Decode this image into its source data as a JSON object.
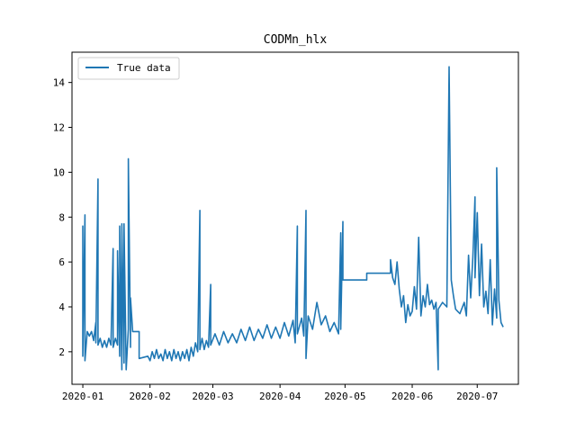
{
  "chart_data": {
    "type": "line",
    "title": "CODMn_hlx",
    "xlabel": "",
    "ylabel": "",
    "x_ticks": [
      "2020-01",
      "2020-02",
      "2020-03",
      "2020-04",
      "2020-05",
      "2020-06",
      "2020-07"
    ],
    "y_ticks": [
      2,
      4,
      6,
      8,
      10,
      12,
      14
    ],
    "xlim": [
      "2019-12-27",
      "2020-07-20"
    ],
    "ylim": [
      0.55,
      15.35
    ],
    "grid": false,
    "legend_position": "top-left",
    "line_color": "#1f77b4",
    "series": [
      {
        "name": "True data",
        "points": [
          [
            "2020-01-01",
            2.0
          ],
          [
            "2020-01-01",
            7.6
          ],
          [
            "2020-01-01",
            1.8
          ],
          [
            "2020-01-02",
            8.1
          ],
          [
            "2020-01-02",
            1.6
          ],
          [
            "2020-01-03",
            2.9
          ],
          [
            "2020-01-04",
            2.7
          ],
          [
            "2020-01-05",
            2.9
          ],
          [
            "2020-01-06",
            2.5
          ],
          [
            "2020-01-07",
            3.3
          ],
          [
            "2020-01-07",
            2.4
          ],
          [
            "2020-01-08",
            9.7
          ],
          [
            "2020-01-08",
            2.3
          ],
          [
            "2020-01-09",
            2.6
          ],
          [
            "2020-01-10",
            2.2
          ],
          [
            "2020-01-11",
            2.5
          ],
          [
            "2020-01-12",
            2.2
          ],
          [
            "2020-01-13",
            2.6
          ],
          [
            "2020-01-14",
            2.3
          ],
          [
            "2020-01-15",
            6.6
          ],
          [
            "2020-01-15",
            2.2
          ],
          [
            "2020-01-16",
            2.6
          ],
          [
            "2020-01-17",
            2.3
          ],
          [
            "2020-01-17",
            6.5
          ],
          [
            "2020-01-18",
            1.8
          ],
          [
            "2020-01-18",
            7.6
          ],
          [
            "2020-01-19",
            1.2
          ],
          [
            "2020-01-19",
            7.7
          ],
          [
            "2020-01-20",
            1.5
          ],
          [
            "2020-01-20",
            7.7
          ],
          [
            "2020-01-21",
            1.2
          ],
          [
            "2020-01-22",
            3.0
          ],
          [
            "2020-01-22",
            10.6
          ],
          [
            "2020-01-23",
            2.2
          ],
          [
            "2020-01-23",
            4.4
          ],
          [
            "2020-01-24",
            2.9
          ],
          [
            "2020-01-27",
            2.9
          ],
          [
            "2020-01-27",
            1.7
          ],
          [
            "2020-01-31",
            1.8
          ],
          [
            "2020-02-01",
            1.6
          ],
          [
            "2020-02-02",
            2.0
          ],
          [
            "2020-02-03",
            1.7
          ],
          [
            "2020-02-04",
            2.1
          ],
          [
            "2020-02-05",
            1.7
          ],
          [
            "2020-02-06",
            1.9
          ],
          [
            "2020-02-07",
            1.6
          ],
          [
            "2020-02-08",
            2.1
          ],
          [
            "2020-02-09",
            1.7
          ],
          [
            "2020-02-10",
            2.0
          ],
          [
            "2020-02-11",
            1.6
          ],
          [
            "2020-02-12",
            2.1
          ],
          [
            "2020-02-13",
            1.7
          ],
          [
            "2020-02-14",
            2.0
          ],
          [
            "2020-02-15",
            1.6
          ],
          [
            "2020-02-16",
            2.0
          ],
          [
            "2020-02-17",
            1.7
          ],
          [
            "2020-02-18",
            2.1
          ],
          [
            "2020-02-19",
            1.6
          ],
          [
            "2020-02-20",
            2.2
          ],
          [
            "2020-02-21",
            1.8
          ],
          [
            "2020-02-22",
            2.4
          ],
          [
            "2020-02-23",
            2.0
          ],
          [
            "2020-02-24",
            8.3
          ],
          [
            "2020-02-24",
            2.1
          ],
          [
            "2020-02-25",
            2.6
          ],
          [
            "2020-02-26",
            2.1
          ],
          [
            "2020-02-27",
            2.5
          ],
          [
            "2020-02-28",
            2.2
          ],
          [
            "2020-02-29",
            5.0
          ],
          [
            "2020-02-29",
            2.3
          ],
          [
            "2020-03-02",
            2.8
          ],
          [
            "2020-03-04",
            2.3
          ],
          [
            "2020-03-06",
            2.9
          ],
          [
            "2020-03-08",
            2.4
          ],
          [
            "2020-03-10",
            2.8
          ],
          [
            "2020-03-12",
            2.4
          ],
          [
            "2020-03-14",
            3.0
          ],
          [
            "2020-03-16",
            2.5
          ],
          [
            "2020-03-18",
            3.1
          ],
          [
            "2020-03-20",
            2.5
          ],
          [
            "2020-03-22",
            3.0
          ],
          [
            "2020-03-24",
            2.6
          ],
          [
            "2020-03-26",
            3.2
          ],
          [
            "2020-03-28",
            2.6
          ],
          [
            "2020-03-30",
            3.1
          ],
          [
            "2020-04-01",
            2.6
          ],
          [
            "2020-04-03",
            3.3
          ],
          [
            "2020-04-05",
            2.7
          ],
          [
            "2020-04-07",
            3.4
          ],
          [
            "2020-04-08",
            2.4
          ],
          [
            "2020-04-09",
            7.6
          ],
          [
            "2020-04-09",
            2.8
          ],
          [
            "2020-04-11",
            3.5
          ],
          [
            "2020-04-12",
            2.7
          ],
          [
            "2020-04-13",
            8.3
          ],
          [
            "2020-04-13",
            1.7
          ],
          [
            "2020-04-14",
            3.6
          ],
          [
            "2020-04-16",
            3.0
          ],
          [
            "2020-04-18",
            4.2
          ],
          [
            "2020-04-20",
            3.2
          ],
          [
            "2020-04-22",
            3.6
          ],
          [
            "2020-04-24",
            2.9
          ],
          [
            "2020-04-26",
            3.3
          ],
          [
            "2020-04-28",
            2.8
          ],
          [
            "2020-04-29",
            7.3
          ],
          [
            "2020-04-29",
            3.0
          ],
          [
            "2020-04-30",
            7.8
          ],
          [
            "2020-04-30",
            5.2
          ],
          [
            "2020-05-11",
            5.2
          ],
          [
            "2020-05-11",
            5.5
          ],
          [
            "2020-05-22",
            5.5
          ],
          [
            "2020-05-22",
            6.1
          ],
          [
            "2020-05-23",
            5.3
          ],
          [
            "2020-05-24",
            5.0
          ],
          [
            "2020-05-25",
            6.0
          ],
          [
            "2020-05-26",
            4.8
          ],
          [
            "2020-05-27",
            4.0
          ],
          [
            "2020-05-28",
            4.5
          ],
          [
            "2020-05-29",
            3.3
          ],
          [
            "2020-05-30",
            4.1
          ],
          [
            "2020-05-31",
            3.6
          ],
          [
            "2020-06-01",
            3.8
          ],
          [
            "2020-06-02",
            4.9
          ],
          [
            "2020-06-03",
            3.9
          ],
          [
            "2020-06-04",
            7.1
          ],
          [
            "2020-06-05",
            3.6
          ],
          [
            "2020-06-06",
            4.5
          ],
          [
            "2020-06-07",
            4.0
          ],
          [
            "2020-06-08",
            5.0
          ],
          [
            "2020-06-09",
            4.1
          ],
          [
            "2020-06-10",
            4.3
          ],
          [
            "2020-06-11",
            3.9
          ],
          [
            "2020-06-12",
            4.2
          ],
          [
            "2020-06-13",
            1.2
          ],
          [
            "2020-06-13",
            3.9
          ],
          [
            "2020-06-15",
            4.2
          ],
          [
            "2020-06-17",
            4.0
          ],
          [
            "2020-06-18",
            14.7
          ],
          [
            "2020-06-19",
            5.2
          ],
          [
            "2020-06-20",
            4.5
          ],
          [
            "2020-06-21",
            3.9
          ],
          [
            "2020-06-23",
            3.7
          ],
          [
            "2020-06-25",
            4.2
          ],
          [
            "2020-06-26",
            3.6
          ],
          [
            "2020-06-27",
            6.3
          ],
          [
            "2020-06-28",
            4.4
          ],
          [
            "2020-06-29",
            6.2
          ],
          [
            "2020-06-30",
            8.9
          ],
          [
            "2020-06-30",
            5.3
          ],
          [
            "2020-07-01",
            8.2
          ],
          [
            "2020-07-02",
            4.5
          ],
          [
            "2020-07-03",
            6.8
          ],
          [
            "2020-07-04",
            4.0
          ],
          [
            "2020-07-05",
            4.7
          ],
          [
            "2020-07-06",
            3.7
          ],
          [
            "2020-07-07",
            6.1
          ],
          [
            "2020-07-08",
            3.2
          ],
          [
            "2020-07-09",
            4.8
          ],
          [
            "2020-07-10",
            3.5
          ],
          [
            "2020-07-10",
            10.2
          ],
          [
            "2020-07-11",
            4.3
          ],
          [
            "2020-07-12",
            3.3
          ],
          [
            "2020-07-13",
            3.1
          ]
        ]
      }
    ]
  }
}
